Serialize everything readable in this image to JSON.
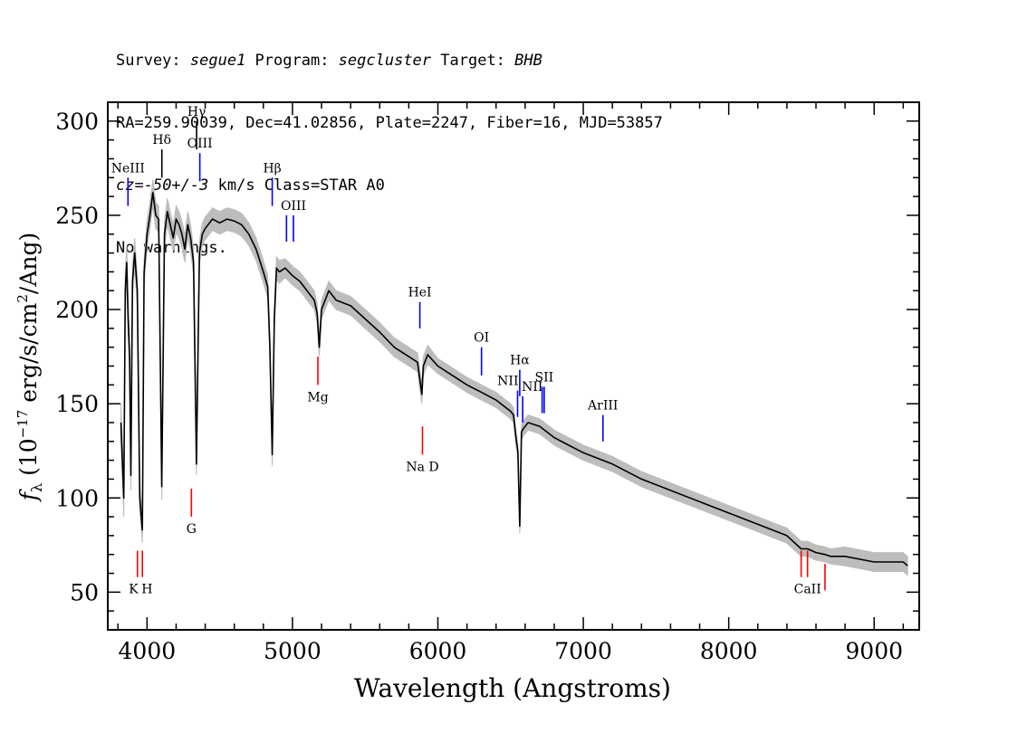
{
  "header": {
    "line1": {
      "survey_label": "Survey: ",
      "survey": "segue1",
      "program_label": " Program: ",
      "program": "segcluster",
      "target_label": " Target: ",
      "target": "BHB"
    },
    "line2": "RA=259.90039, Dec=41.02856, Plate=2247, Fiber=16, MJD=53857",
    "line3": {
      "cz_label": "cz=",
      "cz": "-50+/-3",
      "rest": " km/s Class=STAR A0"
    },
    "line4": "No warnings."
  },
  "colors": {
    "spectrum": "#000000",
    "error_band": "#bdbdbd",
    "emission_line": "#0000ff",
    "absorption_line": "#ff0000"
  },
  "chart_data": {
    "type": "line",
    "xlabel": "Wavelength (Angstroms)",
    "ylabel": "f_λ (10^-17 erg/s/cm^2/Ang)",
    "xlim": [
      3730,
      9310
    ],
    "ylim": [
      30,
      310
    ],
    "x_ticks": [
      4000,
      5000,
      6000,
      7000,
      8000,
      9000
    ],
    "y_ticks": [
      50,
      100,
      150,
      200,
      250,
      300
    ],
    "grid": false,
    "series": [
      {
        "x": [
          3820,
          3840,
          3850,
          3860,
          3870,
          3880,
          3889,
          3900,
          3915,
          3933,
          3950,
          3968,
          3980,
          4000,
          4020,
          4040,
          4060,
          4080,
          4101,
          4120,
          4140,
          4160,
          4180,
          4200,
          4220,
          4240,
          4260,
          4280,
          4300,
          4320,
          4340,
          4360,
          4380,
          4400,
          4420,
          4450,
          4500,
          4550,
          4600,
          4650,
          4700,
          4750,
          4800,
          4830,
          4845,
          4861,
          4875,
          4890,
          4910,
          4950,
          5000,
          5050,
          5100,
          5150,
          5170,
          5184,
          5200,
          5250,
          5300,
          5400,
          5500,
          5600,
          5700,
          5800,
          5860,
          5890,
          5900,
          5930,
          6000,
          6100,
          6200,
          6300,
          6400,
          6500,
          6520,
          6540,
          6550,
          6563,
          6575,
          6590,
          6620,
          6700,
          6800,
          6900,
          7000,
          7200,
          7400,
          7600,
          7800,
          8000,
          8200,
          8400,
          8498,
          8542,
          8600,
          8662,
          8700,
          8800,
          9000,
          9100,
          9200,
          9230
        ],
        "y": [
          140,
          100,
          210,
          225,
          195,
          175,
          112,
          215,
          230,
          210,
          100,
          83,
          220,
          240,
          250,
          262,
          250,
          248,
          106,
          240,
          252,
          245,
          238,
          248,
          245,
          240,
          232,
          245,
          238,
          225,
          118,
          230,
          240,
          243,
          245,
          248,
          246,
          248,
          247,
          245,
          240,
          232,
          220,
          212,
          180,
          123,
          195,
          222,
          220,
          222,
          218,
          215,
          210,
          205,
          198,
          180,
          200,
          210,
          205,
          202,
          195,
          188,
          180,
          175,
          172,
          155,
          170,
          176,
          170,
          165,
          160,
          156,
          152,
          146,
          144,
          130,
          125,
          85,
          135,
          137,
          140,
          138,
          132,
          128,
          124,
          118,
          110,
          104,
          98,
          92,
          86,
          80,
          73,
          73,
          71,
          70,
          69,
          69,
          66,
          66,
          66,
          64
        ],
        "err": [
          10,
          10,
          9,
          9,
          9,
          9,
          8,
          8,
          8,
          8,
          7,
          7,
          7,
          7,
          7,
          7,
          7,
          7,
          7,
          7,
          7,
          7,
          7,
          7,
          7,
          7,
          7,
          7,
          7,
          7,
          6,
          6,
          6,
          6,
          6,
          6,
          6,
          6,
          6,
          6,
          6,
          6,
          6,
          6,
          6,
          6,
          6,
          6,
          6,
          5,
          5,
          5,
          5,
          5,
          5,
          5,
          5,
          5,
          5,
          5,
          5,
          5,
          5,
          5,
          5,
          5,
          5,
          5,
          4,
          4,
          4,
          4,
          4,
          4,
          4,
          4,
          4,
          4,
          4,
          4,
          4,
          4,
          4,
          4,
          4,
          4,
          4,
          4,
          4,
          4,
          4,
          4,
          4,
          4,
          4,
          4,
          4,
          5,
          5,
          5,
          5,
          5
        ]
      }
    ],
    "line_markers": [
      {
        "label": "NeIII",
        "wave": 3869,
        "color": "#0000ff",
        "y_bottom": 255,
        "y_top": 270,
        "text_pos": "above"
      },
      {
        "label": "Hδ",
        "wave": 4102,
        "color": "#000000",
        "y_bottom": 270,
        "y_top": 285,
        "text_pos": "above"
      },
      {
        "label": "Hγ",
        "wave": 4341,
        "color": "#000000",
        "y_bottom": 285,
        "y_top": 300,
        "text_pos": "above"
      },
      {
        "label": "OIII",
        "wave": 4363,
        "color": "#0000ff",
        "y_bottom": 268,
        "y_top": 283,
        "text_pos": "above"
      },
      {
        "label": "Hβ",
        "wave": 4861,
        "color": "#0000ff",
        "y_bottom": 255,
        "y_top": 270,
        "text_pos": "above"
      },
      {
        "label": "OIII",
        "wave": 4959,
        "color": "#0000ff",
        "y_bottom": 236,
        "y_top": 250,
        "text_pos": "none"
      },
      {
        "label": "OIII",
        "wave": 5007,
        "color": "#0000ff",
        "y_bottom": 236,
        "y_top": 250,
        "text_pos": "above"
      },
      {
        "label": "HeI",
        "wave": 5876,
        "color": "#0000ff",
        "y_bottom": 190,
        "y_top": 204,
        "text_pos": "above"
      },
      {
        "label": "OI",
        "wave": 6300,
        "color": "#0000ff",
        "y_bottom": 165,
        "y_top": 180,
        "text_pos": "above"
      },
      {
        "label": "NII",
        "wave": 6548,
        "color": "#0000ff",
        "y_bottom": 143,
        "y_top": 157,
        "text_pos": "above-left"
      },
      {
        "label": "Hα",
        "wave": 6563,
        "color": "#0000ff",
        "y_bottom": 154,
        "y_top": 168,
        "text_pos": "above"
      },
      {
        "label": "NII",
        "wave": 6583,
        "color": "#0000ff",
        "y_bottom": 140,
        "y_top": 154,
        "text_pos": "above-right"
      },
      {
        "label": "SII",
        "wave": 6717,
        "color": "#0000ff",
        "y_bottom": 145,
        "y_top": 159,
        "text_pos": "none"
      },
      {
        "label": "SII",
        "wave": 6731,
        "color": "#0000ff",
        "y_bottom": 145,
        "y_top": 159,
        "text_pos": "above"
      },
      {
        "label": "ArIII",
        "wave": 7135,
        "color": "#0000ff",
        "y_bottom": 130,
        "y_top": 144,
        "text_pos": "above"
      },
      {
        "label": "Mg",
        "wave": 5175,
        "color": "#ff0000",
        "y_bottom": 160,
        "y_top": 175,
        "text_pos": "below"
      },
      {
        "label": "Na D",
        "wave": 5894,
        "color": "#ff0000",
        "y_bottom": 123,
        "y_top": 138,
        "text_pos": "below"
      },
      {
        "label": "G",
        "wave": 4305,
        "color": "#ff0000",
        "y_bottom": 90,
        "y_top": 105,
        "text_pos": "below"
      },
      {
        "label": "K",
        "wave": 3934,
        "color": "#ff0000",
        "y_bottom": 58,
        "y_top": 72,
        "text_pos": "below-left"
      },
      {
        "label": "H",
        "wave": 3968,
        "color": "#ff0000",
        "y_bottom": 58,
        "y_top": 72,
        "text_pos": "below-right"
      },
      {
        "label": "CaII",
        "wave": 8498,
        "color": "#ff0000",
        "y_bottom": 58,
        "y_top": 72,
        "text_pos": "none"
      },
      {
        "label": "CaII",
        "wave": 8542,
        "color": "#ff0000",
        "y_bottom": 58,
        "y_top": 72,
        "text_pos": "below"
      },
      {
        "label": "CaII",
        "wave": 8662,
        "color": "#ff0000",
        "y_bottom": 51,
        "y_top": 65,
        "text_pos": "none"
      }
    ]
  }
}
